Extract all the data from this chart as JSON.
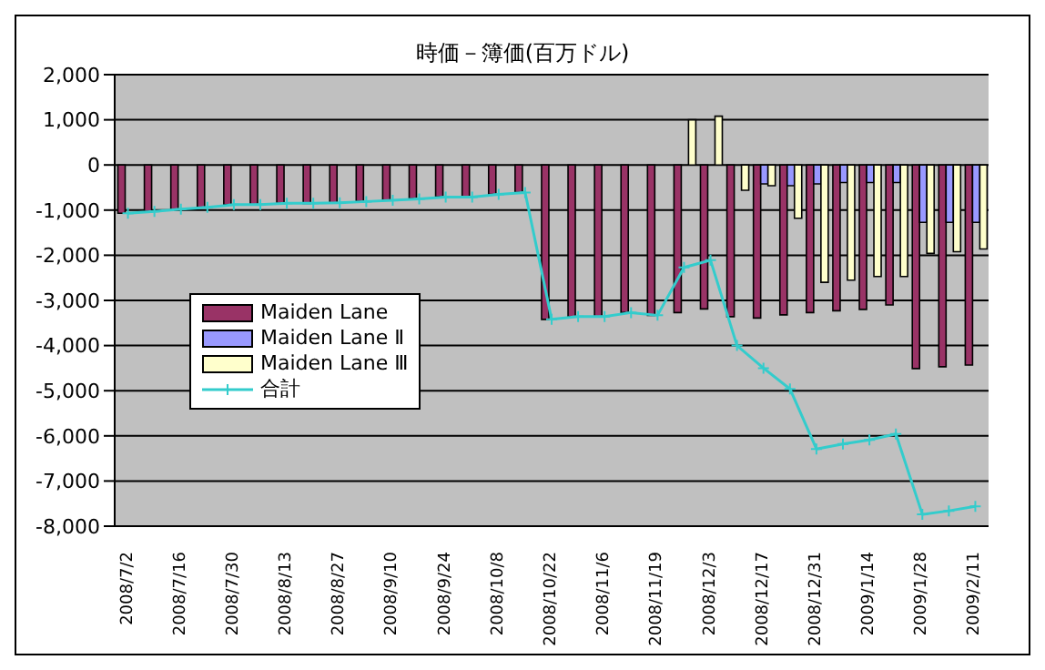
{
  "chart_data": {
    "type": "bar",
    "title": "時価－簿価(百万ドル)",
    "categories": [
      "2008/7/2",
      null,
      "2008/7/16",
      null,
      "2008/7/30",
      null,
      "2008/8/13",
      null,
      "2008/8/27",
      null,
      "2008/9/10",
      null,
      "2008/9/24",
      null,
      "2008/10/8",
      null,
      "2008/10/22",
      null,
      "2008/11/6",
      null,
      "2008/11/19",
      null,
      "2008/12/3",
      null,
      "2008/12/17",
      null,
      "2008/12/31",
      null,
      "2009/1/14",
      null,
      "2009/1/28",
      null,
      "2009/2/11"
    ],
    "series": [
      {
        "name": "Maiden Lane",
        "color": "#993366",
        "values": [
          -1070,
          -1030,
          -980,
          -940,
          -880,
          -880,
          -850,
          -850,
          -840,
          -810,
          -780,
          -750,
          -710,
          -710,
          -650,
          -610,
          -3420,
          -3360,
          -3360,
          -3270,
          -3330,
          -3270,
          -3190,
          -3360,
          -3390,
          -3320,
          -3270,
          -3230,
          -3200,
          -3100,
          -4510,
          -4470,
          -4430
        ]
      },
      {
        "name": "Maiden Lane Ⅱ",
        "color": "#9999ff",
        "values": [
          null,
          null,
          null,
          null,
          null,
          null,
          null,
          null,
          null,
          null,
          null,
          null,
          null,
          null,
          null,
          null,
          null,
          null,
          null,
          null,
          null,
          null,
          null,
          null,
          -420,
          -460,
          -420,
          -390,
          -390,
          -390,
          -1270,
          -1270,
          -1270
        ]
      },
      {
        "name": "Maiden Lane Ⅲ",
        "color": "#ffffcc",
        "values": [
          null,
          null,
          null,
          null,
          null,
          null,
          null,
          null,
          null,
          null,
          null,
          null,
          null,
          null,
          null,
          null,
          null,
          null,
          null,
          null,
          null,
          1000,
          1080,
          -560,
          -460,
          -1180,
          -2600,
          -2550,
          -2470,
          -2470,
          -1960,
          -1920,
          -1860
        ]
      },
      {
        "name": "合計",
        "type": "line",
        "color": "#33cccc",
        "marker": "cross",
        "values": [
          -1070,
          -1030,
          -980,
          -940,
          -880,
          -880,
          -850,
          -850,
          -840,
          -810,
          -780,
          -750,
          -710,
          -710,
          -650,
          -610,
          -3420,
          -3360,
          -3360,
          -3270,
          -3330,
          -2270,
          -2110,
          -4000,
          -4500,
          -4960,
          -6290,
          -6180,
          -6090,
          -5960,
          -7740,
          -7660,
          -7560
        ]
      }
    ],
    "ylim": [
      -8000,
      2000
    ],
    "yticks": [
      {
        "value": -8000,
        "label": "-8,000"
      },
      {
        "value": -7000,
        "label": "-7,000"
      },
      {
        "value": -6000,
        "label": "-6,000"
      },
      {
        "value": -5000,
        "label": "-5,000"
      },
      {
        "value": -4000,
        "label": "-4,000"
      },
      {
        "value": -3000,
        "label": "-3,000"
      },
      {
        "value": -2000,
        "label": "-2,000"
      },
      {
        "value": -1000,
        "label": "-1,000"
      },
      0,
      {
        "value": 1000,
        "label": "1,000"
      },
      {
        "value": 2000,
        "label": "2,000"
      }
    ],
    "grid": "y",
    "legend": "left"
  }
}
